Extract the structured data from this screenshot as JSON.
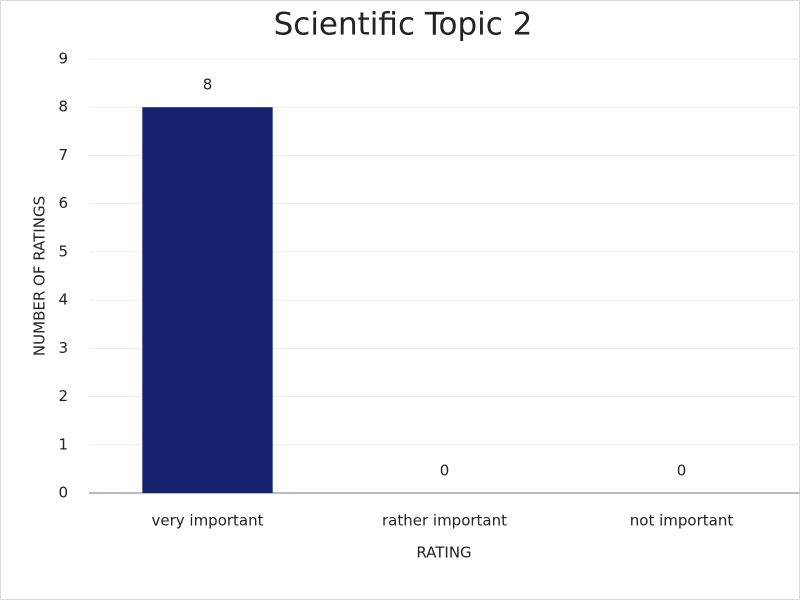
{
  "chart_data": {
    "type": "bar",
    "title": "Scientific Topic 2",
    "x_label": "RATING",
    "y_label": "NUMBER OF RATINGS",
    "categories": [
      "very important",
      "rather important",
      "not important"
    ],
    "values": [
      8,
      0,
      0
    ],
    "color": "#14226e",
    "ylim": [
      0,
      9
    ],
    "yticks": [
      0,
      1,
      2,
      3,
      4,
      5,
      6,
      7,
      8,
      9
    ],
    "grid": true,
    "data_labels": true
  }
}
